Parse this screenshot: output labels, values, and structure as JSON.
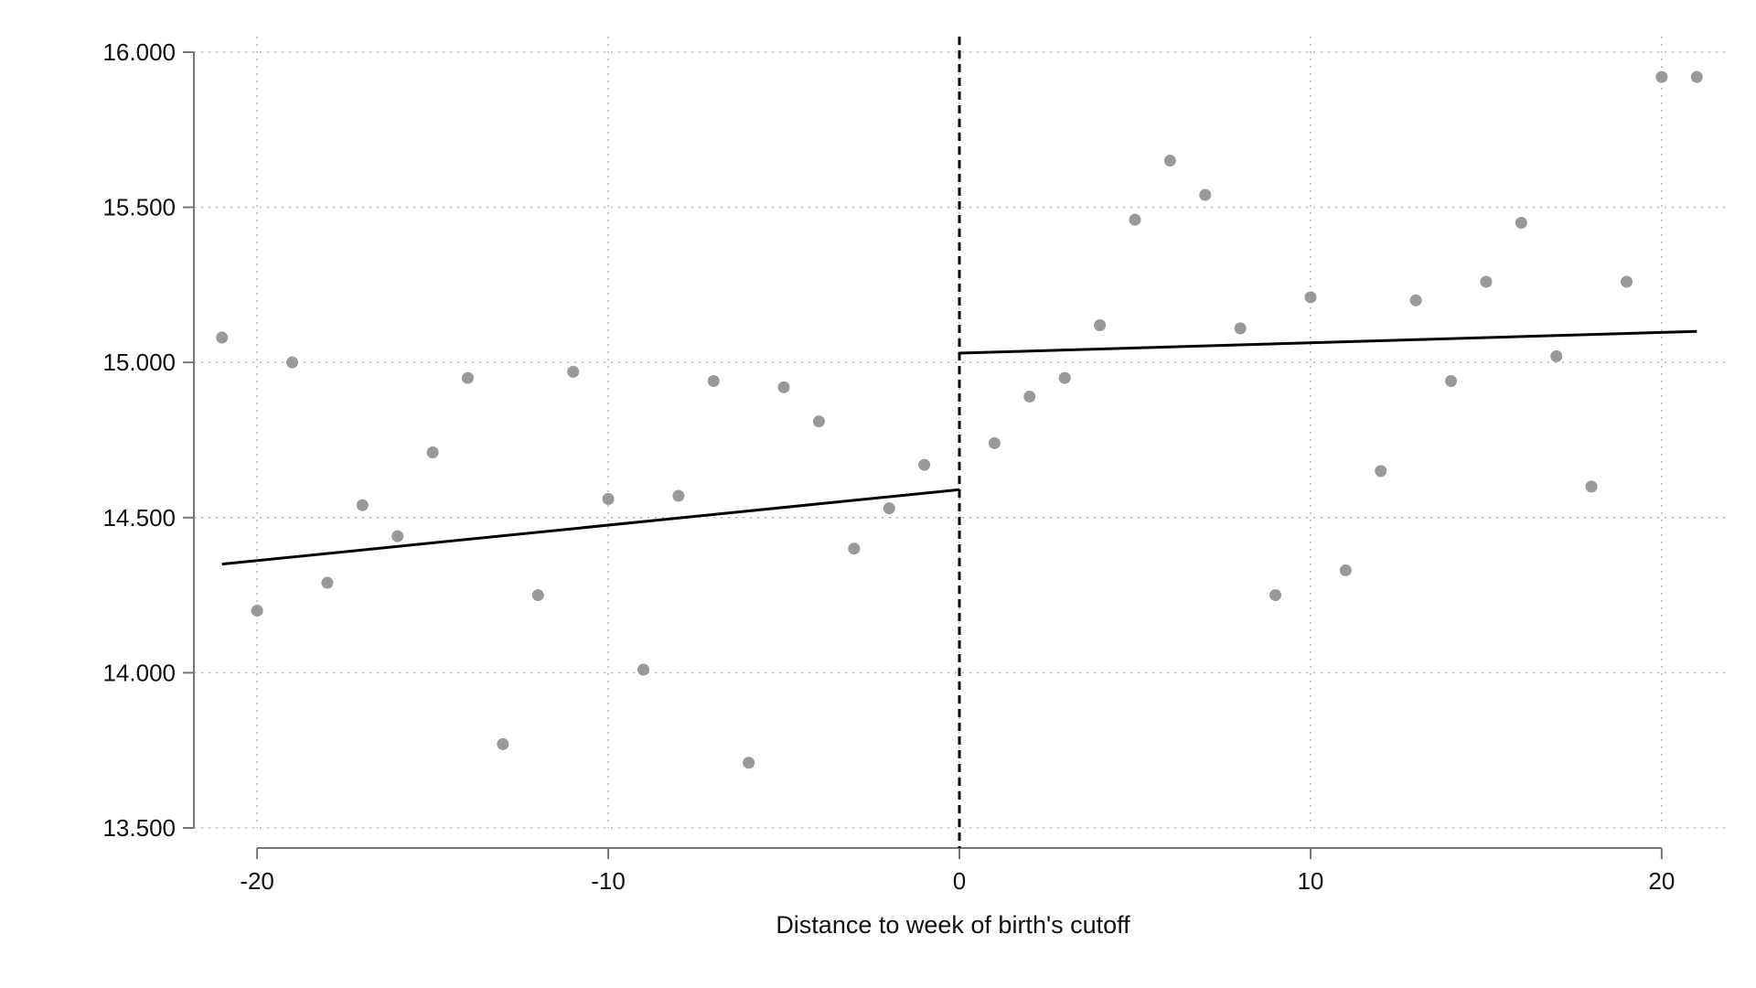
{
  "chart_data": {
    "type": "scatter",
    "title": "",
    "xlabel": "Distance to week of birth's cutoff",
    "ylabel": "",
    "xlim": [
      -21.8,
      21.8
    ],
    "ylim": [
      13.5,
      16.05
    ],
    "x_ticks": [
      -20,
      -10,
      0,
      10,
      20
    ],
    "x_tick_labels": [
      "-20",
      "-10",
      "0",
      "10",
      "20"
    ],
    "y_ticks": [
      13.5,
      14.0,
      14.5,
      15.0,
      15.5,
      16.0
    ],
    "y_tick_labels": [
      "13.500",
      "14.000",
      "14.500",
      "15.000",
      "15.500",
      "16.000"
    ],
    "grid": true,
    "cutoff_x": 0,
    "series": [
      {
        "kind": "points",
        "x": [
          -21,
          -20,
          -19,
          -18,
          -17,
          -16,
          -15,
          -14,
          -13,
          -12,
          -11,
          -10,
          -9,
          -8,
          -7,
          -6,
          -5,
          -4,
          -3,
          -2,
          -1,
          1,
          2,
          3,
          4,
          5,
          6,
          7,
          8,
          9,
          10,
          11,
          12,
          13,
          14,
          15,
          16,
          17,
          18,
          19,
          20,
          21
        ],
        "y": [
          15.08,
          14.2,
          15.0,
          14.29,
          14.54,
          14.44,
          14.71,
          14.95,
          13.77,
          14.25,
          14.97,
          14.56,
          14.01,
          14.57,
          14.94,
          13.71,
          14.92,
          14.81,
          14.4,
          14.53,
          14.67,
          14.74,
          14.89,
          14.95,
          15.12,
          15.46,
          15.65,
          15.54,
          15.11,
          14.25,
          15.21,
          14.33,
          14.65,
          15.2,
          14.94,
          15.26,
          15.45,
          15.02,
          14.6,
          15.26,
          15.92,
          15.92
        ],
        "color": "#999999"
      },
      {
        "kind": "line",
        "x": [
          -21,
          0
        ],
        "y": [
          14.35,
          14.59
        ],
        "color": "#000000"
      },
      {
        "kind": "line",
        "x": [
          0,
          21
        ],
        "y": [
          15.03,
          15.1
        ],
        "color": "#000000"
      }
    ]
  }
}
